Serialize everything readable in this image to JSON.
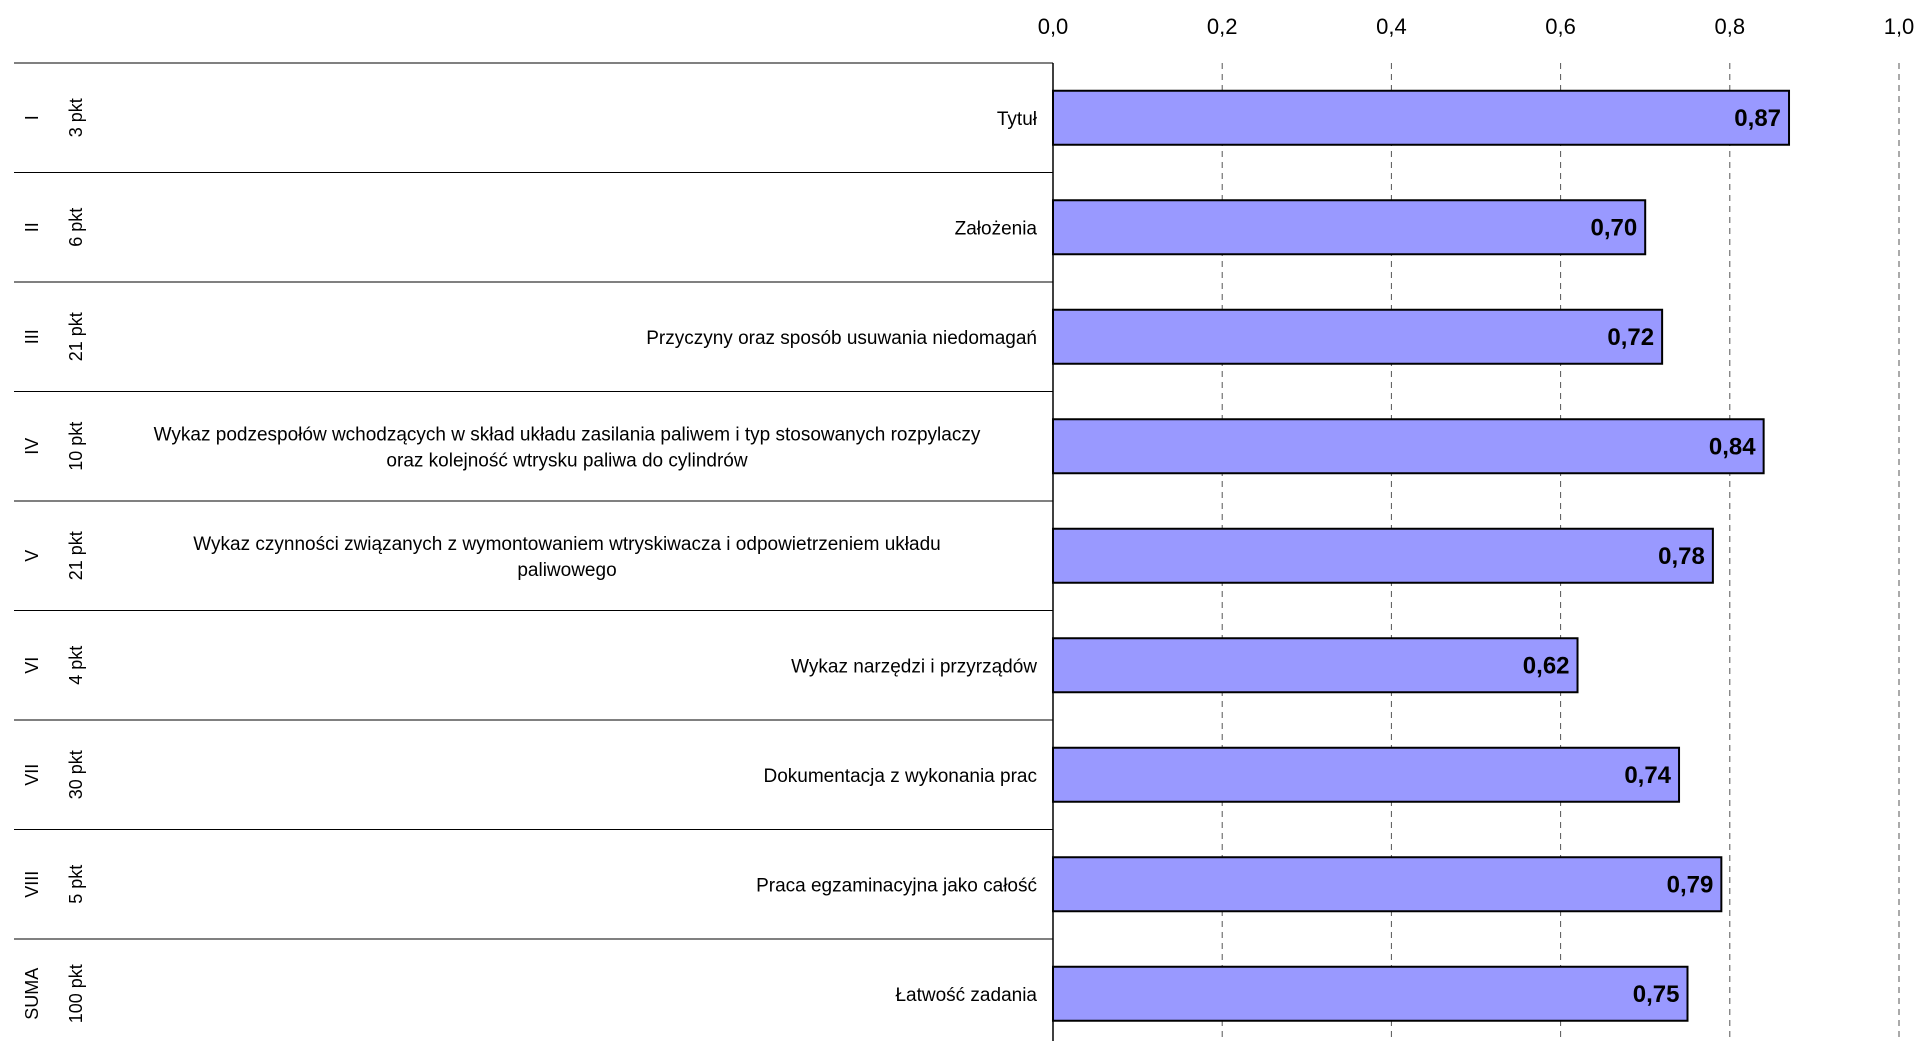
{
  "chart_data": {
    "type": "bar",
    "orientation": "horizontal",
    "x_ticks": [
      "0,0",
      "0,2",
      "0,4",
      "0,6",
      "0,8",
      "1,0"
    ],
    "xlim": [
      0,
      1.0
    ],
    "grid": "vertical dashed",
    "bar_color": "#9999ff",
    "rows": [
      {
        "section": "I",
        "points": "3 pkt",
        "label_lines": [
          "Tytuł"
        ],
        "value": 0.87,
        "value_label": "0,87"
      },
      {
        "section": "II",
        "points": "6 pkt",
        "label_lines": [
          "Założenia"
        ],
        "value": 0.7,
        "value_label": "0,70"
      },
      {
        "section": "III",
        "points": "21 pkt",
        "label_lines": [
          "Przyczyny oraz sposób usuwania niedomagań"
        ],
        "value": 0.72,
        "value_label": "0,72"
      },
      {
        "section": "IV",
        "points": "10 pkt",
        "label_lines": [
          "Wykaz podzespołów wchodzących w skład układu zasilania paliwem i typ stosowanych rozpylaczy",
          "oraz kolejność wtrysku paliwa do cylindrów"
        ],
        "value": 0.84,
        "value_label": "0,84"
      },
      {
        "section": "V",
        "points": "21 pkt",
        "label_lines": [
          "Wykaz czynności związanych z wymontowaniem wtryskiwacza i odpowietrzeniem układu",
          "paliwowego"
        ],
        "value": 0.78,
        "value_label": "0,78"
      },
      {
        "section": "VI",
        "points": "4 pkt",
        "label_lines": [
          "Wykaz narzędzi i przyrządów"
        ],
        "value": 0.62,
        "value_label": "0,62"
      },
      {
        "section": "VII",
        "points": "30 pkt",
        "label_lines": [
          "Dokumentacja z wykonania prac"
        ],
        "value": 0.74,
        "value_label": "0,74"
      },
      {
        "section": "VIII",
        "points": "5 pkt",
        "label_lines": [
          "Praca egzaminacyjna jako całość"
        ],
        "value": 0.79,
        "value_label": "0,79"
      },
      {
        "section": "SUMA",
        "points": "100 pkt",
        "label_lines": [
          "Łatwość zadania"
        ],
        "value": 0.75,
        "value_label": "0,75"
      }
    ]
  }
}
